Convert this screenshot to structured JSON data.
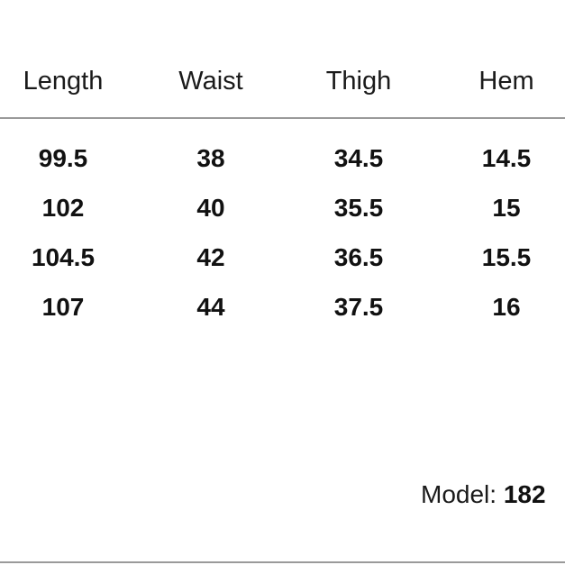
{
  "table": {
    "headers": [
      "Length",
      "Waist",
      "Thigh",
      "Hem"
    ],
    "rows": [
      [
        "99.5",
        "38",
        "34.5",
        "14.5"
      ],
      [
        "102",
        "40",
        "35.5",
        "15"
      ],
      [
        "104.5",
        "42",
        "36.5",
        "15.5"
      ],
      [
        "107",
        "44",
        "37.5",
        "16"
      ]
    ]
  },
  "model": {
    "label": "Model:",
    "value": "182"
  }
}
